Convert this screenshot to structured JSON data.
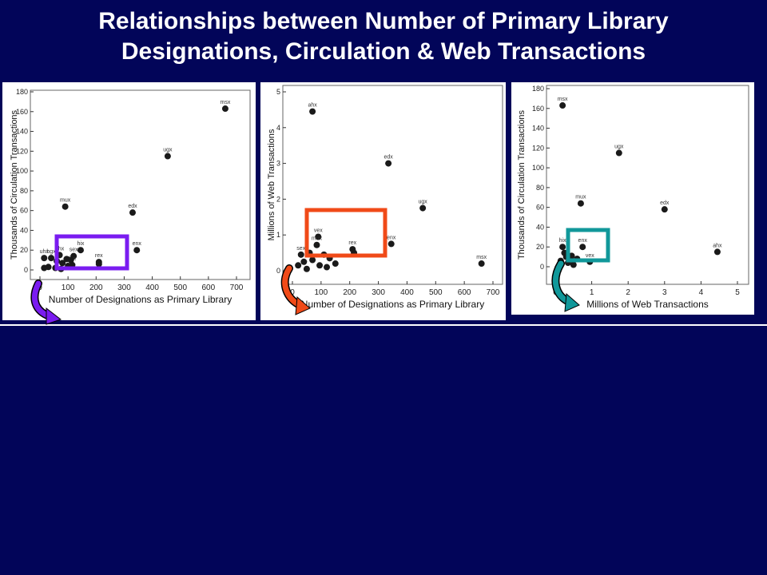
{
  "title": {
    "line1": "Relationships between Number of Primary Library",
    "line2": "Designations, Circulation & Web Transactions"
  },
  "chart_data": [
    {
      "type": "scatter",
      "title": "",
      "xlabel": "Number of Designations as Primary Library",
      "ylabel": "Thousands of Circulation Transactions",
      "xlim": [
        0,
        700
      ],
      "ylim": [
        0,
        180
      ],
      "xticks": [
        "0",
        "100",
        "200",
        "300",
        "400",
        "500",
        "600",
        "700"
      ],
      "yticks": [
        "0",
        "20",
        "40",
        "60",
        "80",
        "100",
        "120",
        "140",
        "160",
        "180"
      ],
      "grid": false,
      "highlight_color": "#7a1cf0",
      "points": [
        {
          "label": "msx",
          "x": 660,
          "y": 163
        },
        {
          "label": "ugx",
          "x": 455,
          "y": 115
        },
        {
          "label": "mux",
          "x": 90,
          "y": 64
        },
        {
          "label": "edx",
          "x": 330,
          "y": 58
        },
        {
          "label": "enx",
          "x": 345,
          "y": 20
        },
        {
          "label": "hix",
          "x": 145,
          "y": 20
        },
        {
          "label": "ahx",
          "x": 70,
          "y": 15
        },
        {
          "label": "sex",
          "x": 120,
          "y": 14
        },
        {
          "label": "uhx",
          "x": 15,
          "y": 12
        },
        {
          "label": "hgx",
          "x": 40,
          "y": 12
        },
        {
          "label": "rex",
          "x": 210,
          "y": 8
        },
        {
          "label": "",
          "x": 210,
          "y": 6
        },
        {
          "label": "fhx",
          "x": 115,
          "y": 5
        },
        {
          "label": "",
          "x": 60,
          "y": 9
        },
        {
          "label": "",
          "x": 80,
          "y": 7
        },
        {
          "label": "",
          "x": 95,
          "y": 11
        },
        {
          "label": "",
          "x": 100,
          "y": 4
        },
        {
          "label": "",
          "x": 30,
          "y": 3
        },
        {
          "label": "",
          "x": 55,
          "y": 2
        },
        {
          "label": "",
          "x": 75,
          "y": 1
        },
        {
          "label": "",
          "x": 110,
          "y": 10
        },
        {
          "label": "",
          "x": 15,
          "y": 2
        }
      ]
    },
    {
      "type": "scatter",
      "title": "",
      "xlabel": "Number of Designations as Primary Library",
      "ylabel": "Millions of Web Transactions",
      "xlim": [
        0,
        700
      ],
      "ylim": [
        0,
        5
      ],
      "xticks": [
        "0",
        "100",
        "200",
        "300",
        "400",
        "500",
        "600",
        "700"
      ],
      "yticks": [
        "0",
        "1",
        "2",
        "3",
        "4",
        "5"
      ],
      "grid": false,
      "highlight_color": "#f04a18",
      "points": [
        {
          "label": "ahx",
          "x": 70,
          "y": 4.45
        },
        {
          "label": "edx",
          "x": 335,
          "y": 3.0
        },
        {
          "label": "ugx",
          "x": 455,
          "y": 1.75
        },
        {
          "label": "vex",
          "x": 90,
          "y": 0.95
        },
        {
          "label": "enx",
          "x": 345,
          "y": 0.75
        },
        {
          "label": "rex",
          "x": 210,
          "y": 0.6
        },
        {
          "label": "",
          "x": 215,
          "y": 0.5
        },
        {
          "label": "msx",
          "x": 660,
          "y": 0.2
        },
        {
          "label": "mux",
          "x": 85,
          "y": 0.72
        },
        {
          "label": "sex",
          "x": 30,
          "y": 0.45
        },
        {
          "label": "",
          "x": 60,
          "y": 0.5
        },
        {
          "label": "",
          "x": 110,
          "y": 0.45
        },
        {
          "label": "",
          "x": 130,
          "y": 0.35
        },
        {
          "label": "",
          "x": 150,
          "y": 0.2
        },
        {
          "label": "",
          "x": 40,
          "y": 0.25
        },
        {
          "label": "",
          "x": 70,
          "y": 0.3
        },
        {
          "label": "",
          "x": 95,
          "y": 0.15
        },
        {
          "label": "",
          "x": 120,
          "y": 0.1
        },
        {
          "label": "",
          "x": 20,
          "y": 0.15
        },
        {
          "label": "",
          "x": 50,
          "y": 0.05
        }
      ]
    },
    {
      "type": "scatter",
      "title": "",
      "xlabel": "Millions of Web Transactions",
      "ylabel": "Thousands of Circulation Transactions",
      "xlim": [
        0,
        5
      ],
      "ylim": [
        0,
        180
      ],
      "xticks": [
        "0",
        "1",
        "2",
        "3",
        "4",
        "5"
      ],
      "yticks": [
        "0",
        "20",
        "40",
        "60",
        "80",
        "100",
        "120",
        "140",
        "160",
        "180"
      ],
      "grid": false,
      "highlight_color": "#11989a",
      "points": [
        {
          "label": "msx",
          "x": 0.2,
          "y": 163
        },
        {
          "label": "ugx",
          "x": 1.75,
          "y": 115
        },
        {
          "label": "mux",
          "x": 0.7,
          "y": 64
        },
        {
          "label": "edx",
          "x": 3.0,
          "y": 58
        },
        {
          "label": "enx",
          "x": 0.75,
          "y": 20
        },
        {
          "label": "ahx",
          "x": 4.45,
          "y": 15
        },
        {
          "label": "hix",
          "x": 0.2,
          "y": 20
        },
        {
          "label": "vex",
          "x": 0.95,
          "y": 5
        },
        {
          "label": "",
          "x": 0.25,
          "y": 14
        },
        {
          "label": "",
          "x": 0.3,
          "y": 10
        },
        {
          "label": "",
          "x": 0.45,
          "y": 11
        },
        {
          "label": "",
          "x": 0.15,
          "y": 6
        },
        {
          "label": "",
          "x": 0.35,
          "y": 4
        },
        {
          "label": "",
          "x": 0.5,
          "y": 2
        },
        {
          "label": "",
          "x": 0.1,
          "y": 1
        },
        {
          "label": "",
          "x": 0.6,
          "y": 8
        }
      ]
    }
  ]
}
